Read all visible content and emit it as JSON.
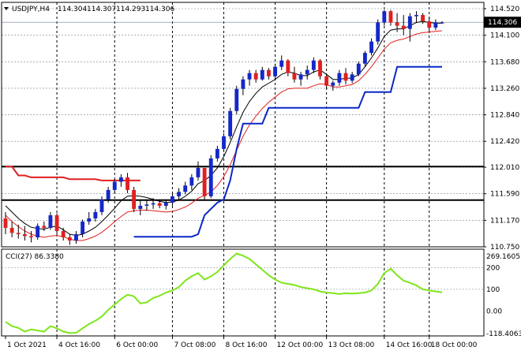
{
  "header": {
    "symbol": "USDJPY,H4",
    "open": "114.304",
    "high": "114.307",
    "low": "114.293",
    "close": "114.306"
  },
  "colors": {
    "background": "#ffffff",
    "grid": "#708090",
    "bull_candle": "#1428c8",
    "bear_candle": "#e02020",
    "ma_fast": "#000000",
    "ma_slow": "#e02020",
    "trail_stop_up": "#0a28c8",
    "trail_stop_down": "#e02020",
    "horizontal_line": "#000000",
    "cci_line": "#7fe61a",
    "price_tag_bg": "#000000",
    "price_tag_text": "#ffffff"
  },
  "chart_data": [
    {
      "type": "line",
      "panel": "price",
      "ylim": [
        110.75,
        114.62
      ],
      "y_ticks": [
        "114.520",
        "114.100",
        "113.680",
        "113.260",
        "112.840",
        "112.420",
        "112.010",
        "111.590",
        "111.170",
        "110.750"
      ],
      "current_price": "114.306",
      "horizontal_levels": [
        112.02,
        111.49
      ],
      "x_ticks": [
        "1 Oct 2021",
        "4 Oct 16:00",
        "6 Oct 00:00",
        "7 Oct 08:00",
        "8 Oct 16:00",
        "12 Oct 00:00",
        "13 Oct 08:00",
        "14 Oct 16:00",
        "18 Oct 00:00"
      ],
      "candles_ohlc": [
        [
          111.2,
          111.3,
          110.95,
          111.05
        ],
        [
          111.05,
          111.15,
          110.9,
          110.97
        ],
        [
          110.97,
          111.1,
          110.88,
          110.95
        ],
        [
          110.95,
          111.08,
          110.85,
          110.92
        ],
        [
          110.92,
          111.0,
          110.82,
          110.9
        ],
        [
          110.9,
          111.12,
          110.86,
          111.08
        ],
        [
          111.08,
          111.15,
          111.0,
          111.05
        ],
        [
          111.05,
          111.3,
          111.02,
          111.25
        ],
        [
          111.25,
          111.28,
          110.95,
          111.0
        ],
        [
          111.0,
          111.05,
          110.85,
          110.9
        ],
        [
          110.9,
          110.95,
          110.78,
          110.85
        ],
        [
          110.85,
          111.0,
          110.8,
          110.95
        ],
        [
          110.95,
          111.18,
          110.9,
          111.15
        ],
        [
          111.15,
          111.3,
          111.1,
          111.2
        ],
        [
          111.2,
          111.35,
          111.15,
          111.3
        ],
        [
          111.3,
          111.55,
          111.25,
          111.5
        ],
        [
          111.5,
          111.7,
          111.45,
          111.65
        ],
        [
          111.65,
          111.82,
          111.6,
          111.78
        ],
        [
          111.78,
          111.9,
          111.7,
          111.85
        ],
        [
          111.85,
          111.92,
          111.6,
          111.65
        ],
        [
          111.65,
          111.7,
          111.3,
          111.35
        ],
        [
          111.35,
          111.48,
          111.25,
          111.4
        ],
        [
          111.4,
          111.5,
          111.32,
          111.42
        ],
        [
          111.42,
          111.52,
          111.35,
          111.44
        ],
        [
          111.44,
          111.5,
          111.36,
          111.4
        ],
        [
          111.4,
          111.5,
          111.34,
          111.45
        ],
        [
          111.45,
          111.6,
          111.4,
          111.55
        ],
        [
          111.55,
          111.68,
          111.48,
          111.62
        ],
        [
          111.62,
          111.78,
          111.58,
          111.72
        ],
        [
          111.72,
          111.9,
          111.65,
          111.85
        ],
        [
          111.85,
          112.1,
          111.8,
          112.0
        ],
        [
          112.0,
          111.98,
          111.5,
          111.55
        ],
        [
          111.55,
          112.2,
          111.52,
          112.15
        ],
        [
          112.15,
          112.35,
          112.1,
          112.3
        ],
        [
          112.3,
          112.55,
          112.25,
          112.5
        ],
        [
          112.5,
          112.95,
          112.45,
          112.9
        ],
        [
          112.9,
          113.3,
          112.85,
          113.25
        ],
        [
          113.25,
          113.45,
          113.15,
          113.4
        ],
        [
          113.4,
          113.55,
          113.3,
          113.5
        ],
        [
          113.5,
          113.55,
          113.35,
          113.4
        ],
        [
          113.4,
          113.6,
          113.38,
          113.55
        ],
        [
          113.55,
          113.58,
          113.4,
          113.45
        ],
        [
          113.45,
          113.65,
          113.4,
          113.6
        ],
        [
          113.6,
          113.78,
          113.55,
          113.7
        ],
        [
          113.7,
          113.72,
          113.45,
          113.5
        ],
        [
          113.5,
          113.6,
          113.35,
          113.4
        ],
        [
          113.4,
          113.52,
          113.3,
          113.48
        ],
        [
          113.48,
          113.62,
          113.4,
          113.55
        ],
        [
          113.55,
          113.75,
          113.5,
          113.7
        ],
        [
          113.7,
          113.72,
          113.4,
          113.45
        ],
        [
          113.45,
          113.48,
          113.25,
          113.3
        ],
        [
          113.3,
          113.38,
          113.22,
          113.35
        ],
        [
          113.35,
          113.55,
          113.3,
          113.5
        ],
        [
          113.5,
          113.58,
          113.32,
          113.38
        ],
        [
          113.38,
          113.52,
          113.34,
          113.48
        ],
        [
          113.48,
          113.68,
          113.45,
          113.65
        ],
        [
          113.65,
          113.85,
          113.6,
          113.82
        ],
        [
          113.82,
          114.05,
          113.78,
          114.0
        ],
        [
          114.0,
          114.35,
          113.95,
          114.3
        ],
        [
          114.3,
          114.5,
          114.25,
          114.48
        ],
        [
          114.48,
          114.5,
          114.25,
          114.3
        ],
        [
          114.3,
          114.45,
          114.15,
          114.25
        ],
        [
          114.25,
          114.42,
          114.1,
          114.2
        ],
        [
          114.2,
          114.45,
          114.0,
          114.4
        ],
        [
          114.4,
          114.48,
          114.3,
          114.42
        ],
        [
          114.42,
          114.45,
          114.28,
          114.32
        ],
        [
          114.32,
          114.38,
          114.15,
          114.22
        ],
        [
          114.22,
          114.35,
          114.18,
          114.3
        ],
        [
          114.3,
          114.32,
          114.28,
          114.3
        ]
      ],
      "series": [
        {
          "kind": "ma_fast",
          "values": [
            111.4,
            111.3,
            111.2,
            111.12,
            111.06,
            111.04,
            111.03,
            111.06,
            111.08,
            111.02,
            110.95,
            110.93,
            110.95,
            111.0,
            111.06,
            111.15,
            111.25,
            111.36,
            111.48,
            111.55,
            111.56,
            111.55,
            111.53,
            111.5,
            111.47,
            111.45,
            111.46,
            111.49,
            111.55,
            111.63,
            111.75,
            111.8,
            111.88,
            112.0,
            112.18,
            112.4,
            112.65,
            112.88,
            113.05,
            113.18,
            113.28,
            113.34,
            113.4,
            113.48,
            113.52,
            113.5,
            113.46,
            113.46,
            113.52,
            113.55,
            113.48,
            113.4,
            113.4,
            113.42,
            113.42,
            113.48,
            113.6,
            113.74,
            113.9,
            114.08,
            114.18,
            114.2,
            114.2,
            114.25,
            114.3,
            114.32,
            114.3,
            114.29,
            114.29
          ]
        },
        {
          "kind": "ma_slow",
          "values": [
            111.25,
            111.15,
            111.07,
            111.0,
            110.95,
            110.92,
            110.9,
            110.92,
            110.93,
            110.91,
            110.87,
            110.85,
            110.85,
            110.88,
            110.92,
            110.98,
            111.06,
            111.15,
            111.23,
            111.3,
            111.32,
            111.33,
            111.33,
            111.32,
            111.31,
            111.3,
            111.31,
            111.34,
            111.38,
            111.44,
            111.52,
            111.56,
            111.62,
            111.72,
            111.86,
            112.05,
            112.28,
            112.5,
            112.68,
            112.82,
            112.94,
            113.04,
            113.12,
            113.2,
            113.25,
            113.26,
            113.26,
            113.26,
            113.3,
            113.33,
            113.32,
            113.28,
            113.28,
            113.3,
            113.32,
            113.38,
            113.48,
            113.6,
            113.74,
            113.88,
            113.98,
            114.02,
            114.04,
            114.08,
            114.12,
            114.14,
            114.15,
            114.16,
            114.17
          ]
        },
        {
          "kind": "trail_stop_down",
          "values": [
            112.02,
            112.02,
            111.88,
            111.88,
            111.85,
            111.85,
            111.85,
            111.85,
            111.85,
            111.85,
            111.82,
            111.82,
            111.82,
            111.82,
            111.82,
            111.8,
            111.8,
            111.8,
            111.8,
            111.8,
            111.8,
            111.8,
            null,
            null,
            null,
            null,
            null,
            null,
            null,
            null,
            null,
            null,
            null,
            null,
            null,
            null,
            null,
            null,
            null,
            null,
            null,
            null,
            null,
            null,
            null,
            null,
            null,
            null,
            null,
            null,
            null,
            null,
            null,
            null,
            null,
            null,
            null,
            null,
            null,
            null,
            null,
            null,
            null,
            null,
            null,
            null,
            null,
            null,
            null
          ]
        },
        {
          "kind": "trail_stop_up",
          "values": [
            null,
            null,
            null,
            null,
            null,
            null,
            null,
            null,
            null,
            null,
            null,
            null,
            null,
            null,
            null,
            null,
            null,
            null,
            null,
            null,
            110.91,
            110.91,
            110.91,
            110.91,
            110.91,
            110.91,
            110.91,
            110.91,
            110.91,
            110.91,
            110.95,
            111.25,
            111.35,
            111.45,
            111.5,
            111.8,
            112.3,
            112.7,
            112.7,
            112.7,
            112.7,
            112.95,
            112.95,
            112.95,
            112.95,
            112.95,
            112.95,
            112.95,
            112.95,
            112.95,
            112.95,
            112.95,
            112.95,
            112.95,
            112.95,
            112.95,
            113.2,
            113.2,
            113.2,
            113.2,
            113.2,
            113.6,
            113.6,
            113.6,
            113.6,
            113.6,
            113.6,
            113.6,
            113.6
          ]
        }
      ]
    },
    {
      "type": "line",
      "panel": "indicator",
      "title": "CCI(27) 86.3380",
      "ylim": [
        -115,
        285
      ],
      "y_ticks": [
        "269.1605",
        "200",
        "100",
        "0.00",
        "-118.4063"
      ],
      "levels": [
        200,
        100
      ],
      "series": [
        {
          "name": "CCI(27)",
          "values": [
            -50,
            -70,
            -78,
            -95,
            -85,
            -90,
            -95,
            -70,
            -80,
            -95,
            -102,
            -100,
            -80,
            -60,
            -45,
            -25,
            5,
            30,
            55,
            75,
            68,
            35,
            40,
            60,
            70,
            85,
            95,
            110,
            140,
            160,
            175,
            145,
            160,
            180,
            210,
            240,
            265,
            255,
            240,
            215,
            190,
            165,
            145,
            130,
            125,
            120,
            110,
            105,
            100,
            90,
            85,
            82,
            78,
            82,
            80,
            82,
            85,
            95,
            125,
            175,
            195,
            165,
            140,
            130,
            118,
            100,
            95,
            90,
            86
          ]
        }
      ]
    }
  ]
}
